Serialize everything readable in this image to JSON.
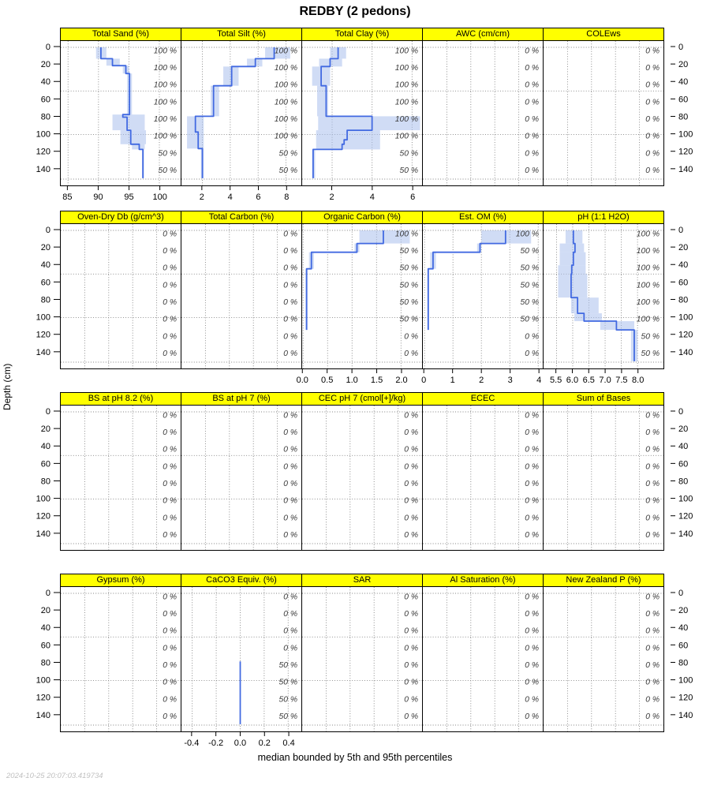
{
  "title": "REDBY (2 pedons)",
  "ylabel": "Depth (cm)",
  "caption": "median bounded by 5th and 95th percentiles",
  "timestamp": "2024-10-25 20:07:03.419734",
  "colors": {
    "strip_bg": "#FFFF00",
    "line": "#4169E1",
    "band": "#AABFEC",
    "grid": "#808080",
    "pct_text": "#3c3c3c",
    "frame": "#000000"
  },
  "depth_ticks": [
    0,
    20,
    40,
    60,
    80,
    100,
    120,
    140
  ],
  "depth_slab_lines": [
    0,
    50,
    100,
    151
  ],
  "pct_label_depths": [
    3,
    22.6,
    42.2,
    61.8,
    81.4,
    101,
    120.6,
    140.2
  ],
  "chart_data": {
    "type": "line",
    "orientation": "depth-profile",
    "x_is_value": true,
    "y_is_depth_cm": true,
    "depth_range": [
      0,
      152
    ],
    "rows": [
      [
        {
          "title": "Total Sand (%)",
          "xlim": [
            83.8,
            103.5
          ],
          "xticks": [
            85,
            90,
            95,
            100
          ],
          "xlabels": [
            "85",
            "90",
            "95",
            "100"
          ],
          "pct": [
            "100 %",
            "100 %",
            "100 %",
            "100 %",
            "100 %",
            "100 %",
            "50 %",
            "50 %"
          ],
          "median": [
            [
              0,
              90.4
            ],
            [
              13,
              92.3
            ],
            [
              21,
              94.5
            ],
            [
              30,
              95.1
            ],
            [
              77,
              94.0
            ],
            [
              80,
              94.7
            ],
            [
              95,
              95.3
            ],
            [
              111,
              96.7
            ],
            [
              117,
              97.3
            ]
          ],
          "end": 150,
          "band": [
            [
              0,
              13,
              89.6,
              91.3
            ],
            [
              13,
              21,
              91.3,
              93.5
            ],
            [
              21,
              30,
              94.0,
              95.0
            ],
            [
              30,
              77,
              94.7,
              95.5
            ],
            [
              77,
              95,
              92.3,
              97.6
            ],
            [
              95,
              111,
              93.6,
              97.8
            ],
            [
              111,
              117,
              95.5,
              97.6
            ],
            [
              117,
              150,
              97.2,
              97.5
            ]
          ]
        },
        {
          "title": "Total Silt (%)",
          "xlim": [
            0.5,
            9.1
          ],
          "xticks": [
            2,
            4,
            6,
            8
          ],
          "xlabels": [
            "2",
            "4",
            "6",
            "8"
          ],
          "pct": [
            "100 %",
            "100 %",
            "100 %",
            "100 %",
            "100 %",
            "100 %",
            "50 %",
            "50 %"
          ],
          "median": [
            [
              0,
              7.15
            ],
            [
              13,
              5.8
            ],
            [
              22,
              4.1
            ],
            [
              44,
              2.8
            ],
            [
              79,
              1.5
            ],
            [
              97,
              1.7
            ],
            [
              116,
              2.0
            ]
          ],
          "end": 150,
          "band": [
            [
              0,
              13,
              6.5,
              8.3
            ],
            [
              13,
              22,
              5.2,
              6.3
            ],
            [
              22,
              44,
              3.5,
              4.6
            ],
            [
              44,
              79,
              2.6,
              3.2
            ],
            [
              79,
              116,
              0.9,
              2.1
            ],
            [
              116,
              150,
              1.9,
              2.1
            ]
          ]
        },
        {
          "title": "Total Clay (%)",
          "xlim": [
            0.5,
            6.5
          ],
          "xticks": [
            2,
            4,
            6
          ],
          "xlabels": [
            "2",
            "4",
            "6"
          ],
          "pct": [
            "100 %",
            "100 %",
            "100 %",
            "100 %",
            "100 %",
            "100 %",
            "50 %",
            "50 %"
          ],
          "median": [
            [
              0,
              2.3
            ],
            [
              13,
              1.9
            ],
            [
              22,
              1.45
            ],
            [
              44,
              1.7
            ],
            [
              79,
              4.0
            ],
            [
              95,
              2.75
            ],
            [
              106,
              2.6
            ],
            [
              111,
              2.5
            ],
            [
              117,
              1.05
            ]
          ],
          "end": 150,
          "band": [
            [
              0,
              13,
              1.9,
              2.7
            ],
            [
              13,
              22,
              1.35,
              2.5
            ],
            [
              22,
              44,
              1.0,
              1.9
            ],
            [
              44,
              79,
              1.25,
              1.8
            ],
            [
              79,
              95,
              1.3,
              6.4
            ],
            [
              95,
              117,
              1.2,
              4.4
            ],
            [
              117,
              150,
              1.0,
              1.15
            ]
          ]
        },
        {
          "title": "AWC (cm/cm)",
          "xlim": [
            0,
            1
          ],
          "xticks": [],
          "xlabels": null,
          "grid_n": 4,
          "pct": [
            "0 %",
            "0 %",
            "0 %",
            "0 %",
            "0 %",
            "0 %",
            "0 %",
            "0 %"
          ],
          "median": null,
          "end": null,
          "band": []
        },
        {
          "title": "COLEws",
          "xlim": [
            0,
            1
          ],
          "xticks": [],
          "xlabels": null,
          "grid_n": 4,
          "pct": [
            "0 %",
            "0 %",
            "0 %",
            "0 %",
            "0 %",
            "0 %",
            "0 %",
            "0 %"
          ],
          "median": null,
          "end": null,
          "band": []
        }
      ],
      [
        {
          "title": "Oven-Dry Db (g/cm^3)",
          "xlim": [
            0,
            1
          ],
          "xticks": [],
          "xlabels": null,
          "grid_n": 4,
          "pct": [
            "0 %",
            "0 %",
            "0 %",
            "0 %",
            "0 %",
            "0 %",
            "0 %",
            "0 %"
          ],
          "median": null,
          "end": null,
          "band": []
        },
        {
          "title": "Total Carbon (%)",
          "xlim": [
            0,
            1
          ],
          "xticks": [],
          "xlabels": null,
          "grid_n": 4,
          "pct": [
            "0 %",
            "0 %",
            "0 %",
            "0 %",
            "0 %",
            "0 %",
            "0 %",
            "0 %"
          ],
          "median": null,
          "end": null,
          "band": []
        },
        {
          "title": "Organic Carbon (%)",
          "xlim": [
            -0.02,
            2.43
          ],
          "xticks": [
            0.0,
            0.5,
            1.0,
            1.5,
            2.0
          ],
          "xlabels": [
            "0.0",
            "0.5",
            "1.0",
            "1.5",
            "2.0"
          ],
          "pct": [
            "100 %",
            "50 %",
            "50 %",
            "50 %",
            "50 %",
            "50 %",
            "0 %",
            "0 %"
          ],
          "median": [
            [
              0,
              1.64
            ],
            [
              15,
              1.1
            ],
            [
              25,
              0.17
            ],
            [
              44,
              0.07
            ]
          ],
          "end": 114,
          "band": [
            [
              0,
              15,
              1.15,
              2.18
            ],
            [
              15,
              25,
              1.05,
              1.15
            ],
            [
              25,
              44,
              0.12,
              0.22
            ],
            [
              44,
              114,
              0.05,
              0.09
            ]
          ]
        },
        {
          "title": "Est. OM (%)",
          "xlim": [
            -0.06,
            4.16
          ],
          "xticks": [
            0,
            1,
            2,
            3,
            4
          ],
          "xlabels": [
            "0",
            "1",
            "2",
            "3",
            "4"
          ],
          "pct": [
            "100 %",
            "50 %",
            "50 %",
            "50 %",
            "50 %",
            "50 %",
            "0 %",
            "0 %"
          ],
          "median": [
            [
              0,
              2.85
            ],
            [
              15,
              1.95
            ],
            [
              25,
              0.3
            ],
            [
              44,
              0.13
            ]
          ],
          "end": 114,
          "band": [
            [
              0,
              15,
              2.0,
              3.75
            ],
            [
              15,
              25,
              1.85,
              2.0
            ],
            [
              25,
              44,
              0.2,
              0.4
            ],
            [
              44,
              114,
              0.1,
              0.16
            ]
          ]
        },
        {
          "title": "pH (1:1 H2O)",
          "xlim": [
            5.1,
            8.8
          ],
          "xticks": [
            5.5,
            6.0,
            6.5,
            7.0,
            7.5,
            8.0
          ],
          "xlabels": [
            "5.5",
            "6.0",
            "6.5",
            "7.0",
            "7.5",
            "8.0"
          ],
          "pct": [
            "100 %",
            "100 %",
            "100 %",
            "100 %",
            "100 %",
            "100 %",
            "50 %",
            "50 %"
          ],
          "median": [
            [
              0,
              6.02
            ],
            [
              15,
              6.07
            ],
            [
              25,
              6.02
            ],
            [
              40,
              5.97
            ],
            [
              50,
              5.95
            ],
            [
              77,
              6.15
            ],
            [
              95,
              6.35
            ],
            [
              104,
              7.35
            ],
            [
              114,
              7.9
            ]
          ],
          "end": 150,
          "band": [
            [
              0,
              15,
              5.78,
              6.3
            ],
            [
              15,
              25,
              5.6,
              6.35
            ],
            [
              25,
              40,
              5.6,
              6.4
            ],
            [
              40,
              50,
              5.55,
              6.4
            ],
            [
              50,
              77,
              5.55,
              6.45
            ],
            [
              77,
              95,
              5.95,
              6.8
            ],
            [
              95,
              104,
              6.05,
              6.9
            ],
            [
              104,
              114,
              6.85,
              7.9
            ],
            [
              114,
              150,
              7.8,
              8.0
            ]
          ]
        }
      ],
      [
        {
          "title": "BS at pH 8.2 (%)",
          "xlim": [
            0,
            1
          ],
          "xticks": [],
          "xlabels": null,
          "grid_n": 4,
          "pct": [
            "0 %",
            "0 %",
            "0 %",
            "0 %",
            "0 %",
            "0 %",
            "0 %",
            "0 %"
          ],
          "median": null,
          "end": null,
          "band": []
        },
        {
          "title": "BS at pH 7 (%)",
          "xlim": [
            0,
            1
          ],
          "xticks": [],
          "xlabels": null,
          "grid_n": 4,
          "pct": [
            "0 %",
            "0 %",
            "0 %",
            "0 %",
            "0 %",
            "0 %",
            "0 %",
            "0 %"
          ],
          "median": null,
          "end": null,
          "band": []
        },
        {
          "title": "CEC pH 7 (cmol[+]/kg)",
          "xlim": [
            0,
            1
          ],
          "xticks": [],
          "xlabels": null,
          "grid_n": 4,
          "pct": [
            "0 %",
            "0 %",
            "0 %",
            "0 %",
            "0 %",
            "0 %",
            "0 %",
            "0 %"
          ],
          "median": null,
          "end": null,
          "band": []
        },
        {
          "title": "ECEC",
          "xlim": [
            0,
            1
          ],
          "xticks": [],
          "xlabels": null,
          "grid_n": 4,
          "pct": [
            "0 %",
            "0 %",
            "0 %",
            "0 %",
            "0 %",
            "0 %",
            "0 %",
            "0 %"
          ],
          "median": null,
          "end": null,
          "band": []
        },
        {
          "title": "Sum of Bases",
          "xlim": [
            0,
            1
          ],
          "xticks": [],
          "xlabels": null,
          "grid_n": 4,
          "pct": [
            "0 %",
            "0 %",
            "0 %",
            "0 %",
            "0 %",
            "0 %",
            "0 %",
            "0 %"
          ],
          "median": null,
          "end": null,
          "band": []
        }
      ],
      [
        {
          "title": "Gypsum (%)",
          "xlim": [
            0,
            1
          ],
          "xticks": [],
          "xlabels": null,
          "grid_n": 4,
          "pct": [
            "0 %",
            "0 %",
            "0 %",
            "0 %",
            "0 %",
            "0 %",
            "0 %",
            "0 %"
          ],
          "median": null,
          "end": null,
          "band": []
        },
        {
          "title": "CaCO3 Equiv. (%)",
          "xlim": [
            -0.49,
            0.51
          ],
          "xticks": [
            -0.4,
            -0.2,
            0.0,
            0.2,
            0.4
          ],
          "xlabels": [
            "-0.4",
            "-0.2",
            "0.0",
            "0.2",
            "0.4"
          ],
          "pct": [
            "0 %",
            "0 %",
            "0 %",
            "0 %",
            "50 %",
            "50 %",
            "50 %",
            "50 %"
          ],
          "median": [
            [
              78,
              0.0
            ]
          ],
          "end": 150,
          "band": []
        },
        {
          "title": "SAR",
          "xlim": [
            0,
            1
          ],
          "xticks": [],
          "xlabels": null,
          "grid_n": 4,
          "pct": [
            "0 %",
            "0 %",
            "0 %",
            "0 %",
            "0 %",
            "0 %",
            "0 %",
            "0 %"
          ],
          "median": null,
          "end": null,
          "band": []
        },
        {
          "title": "Al Saturation (%)",
          "xlim": [
            0,
            1
          ],
          "xticks": [],
          "xlabels": null,
          "grid_n": 4,
          "pct": [
            "0 %",
            "0 %",
            "0 %",
            "0 %",
            "0 %",
            "0 %",
            "0 %",
            "0 %"
          ],
          "median": null,
          "end": null,
          "band": []
        },
        {
          "title": "New Zealand P (%)",
          "xlim": [
            0,
            1
          ],
          "xticks": [],
          "xlabels": null,
          "grid_n": 4,
          "pct": [
            "0 %",
            "0 %",
            "0 %",
            "0 %",
            "0 %",
            "0 %",
            "0 %",
            "0 %"
          ],
          "median": null,
          "end": null,
          "band": []
        }
      ]
    ]
  }
}
